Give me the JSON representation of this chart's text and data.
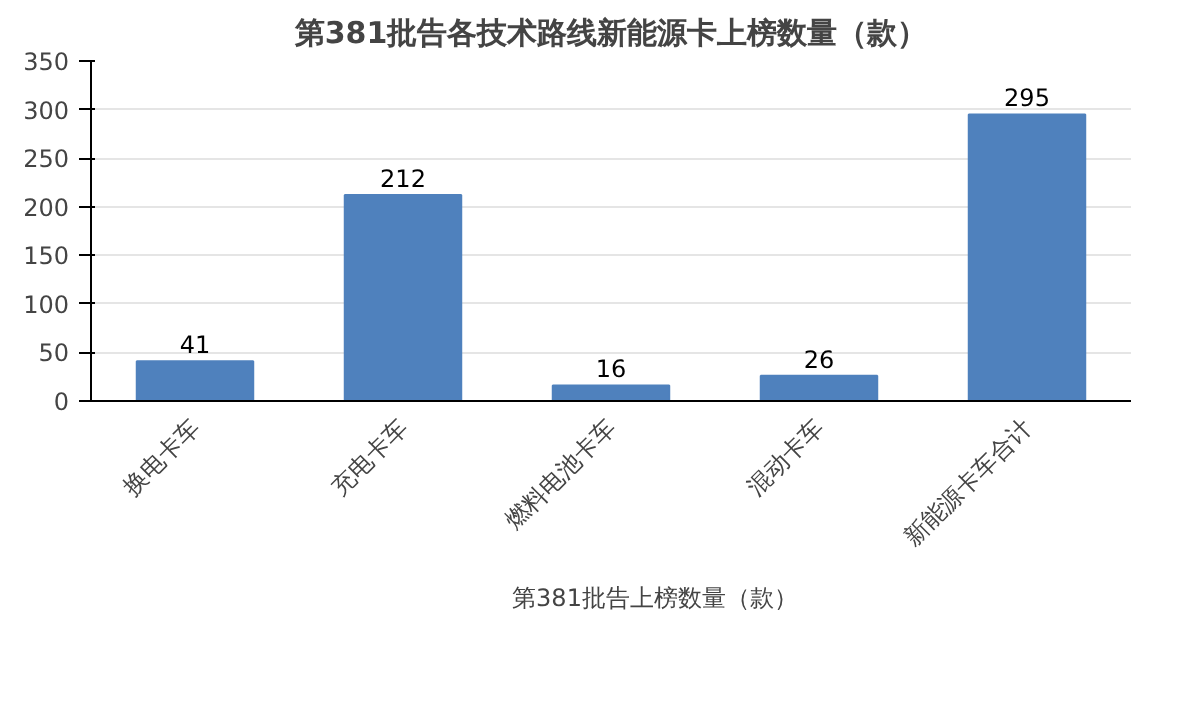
{
  "chart_data": {
    "type": "bar",
    "title": "第381批告各技术路线新能源卡上榜数量（款）",
    "categories": [
      "换电卡车",
      "充电卡车",
      "燃料电池卡车",
      "混动卡车",
      "新能源卡车合计"
    ],
    "series": [
      {
        "name": "第381批告上榜数量（款）",
        "color": "#4f81bd",
        "values": [
          41,
          212,
          16,
          26,
          295
        ]
      }
    ],
    "ylim": [
      0,
      350
    ],
    "yticks": [
      0,
      50,
      100,
      150,
      200,
      250,
      300,
      350
    ],
    "grid": "y",
    "legend": "bottom",
    "data_labels": true
  }
}
